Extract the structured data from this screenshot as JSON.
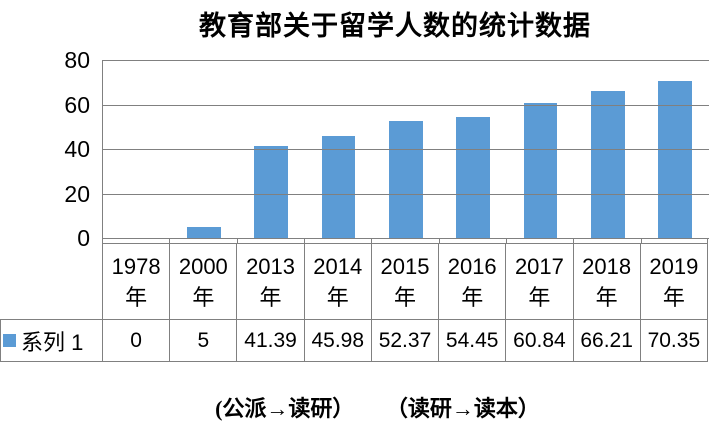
{
  "title": "教育部关于留学人数的统计数据",
  "chart_data": {
    "type": "bar",
    "title": "教育部关于留学人数的统计数据",
    "categories": [
      "1978年",
      "2000年",
      "2013年",
      "2014年",
      "2015年",
      "2016年",
      "2017年",
      "2018年",
      "2019年"
    ],
    "series": [
      {
        "name": "系列 1",
        "values": [
          0,
          5,
          41.39,
          45.98,
          52.37,
          54.45,
          60.84,
          66.21,
          70.35
        ]
      }
    ],
    "xlabel": "",
    "ylabel": "",
    "ylim": [
      0,
      80
    ],
    "yticks": [
      0,
      20,
      40,
      60,
      80
    ],
    "grid": true,
    "legend_position": "data-table-left",
    "bar_color": "#5B9BD5",
    "gridline_color": "#808080",
    "data_table_shown": true
  },
  "data_table": {
    "legend_label": "系列 1",
    "legend_swatch_color": "#5B9BD5",
    "year_labels": [
      "1978",
      "2000",
      "2013",
      "2014",
      "2015",
      "2016",
      "2017",
      "2018",
      "2019"
    ],
    "year_suffix": "年",
    "values": [
      "0",
      "5",
      "41.39",
      "45.98",
      "52.37",
      "54.45",
      "60.84",
      "66.21",
      "70.35"
    ]
  },
  "caption": {
    "part1": "(公派→读研）",
    "part2": "（读研→读本）"
  }
}
